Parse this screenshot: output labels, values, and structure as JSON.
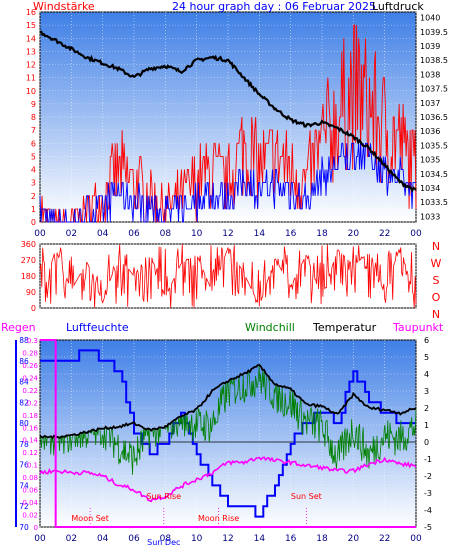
{
  "header": {
    "left_label": "Windstärke",
    "title": "24 hour graph day : 06 Februar 2025",
    "right_label": "Luftdruck"
  },
  "colors": {
    "wind": "#ff0000",
    "gust_blue": "#0000ff",
    "pressure": "#000000",
    "humidity": "#0000ff",
    "windchill": "#008000",
    "temperature": "#000000",
    "dewpoint": "#ff00ff",
    "rain": "#ff00ff",
    "axis_pink": "#ff00ff",
    "axis_blue": "#0000ff"
  },
  "x_ticks": [
    "00",
    "02",
    "04",
    "06",
    "08",
    "10",
    "12",
    "14",
    "16",
    "18",
    "20",
    "22",
    "00"
  ],
  "panel1": {
    "left_ticks": [
      "0",
      "1",
      "2",
      "3",
      "4",
      "5",
      "6",
      "7",
      "8",
      "9",
      "10",
      "11",
      "12",
      "13",
      "14",
      "15",
      "16"
    ],
    "right_ticks": [
      "1033",
      "1033.5",
      "1034",
      "1034.5",
      "1035",
      "1035.5",
      "1036",
      "1036.5",
      "1037",
      "1037.5",
      "1038",
      "1038.5",
      "1039",
      "1039.5",
      "1040"
    ]
  },
  "panel2": {
    "left_ticks": [
      "0",
      "90",
      "180",
      "270",
      "360"
    ],
    "right_letters": [
      "N",
      "W",
      "S",
      "O",
      "N"
    ]
  },
  "panel3": {
    "legend": {
      "rain": "Regen",
      "humidity": "Luftfeuchte",
      "windchill": "Windchill",
      "temperature": "Temperatur",
      "dewpoint": "Taupunkt"
    },
    "rain_ticks": [
      "0",
      "0.02",
      "0.04",
      "0.06",
      "0.08",
      "0.1",
      "0.12",
      "0.14",
      "0.16",
      "0.18",
      "0.2",
      "0.22",
      "0.24",
      "0.26",
      "0.28",
      "0.3"
    ],
    "humidity_ticks": [
      "70",
      "72",
      "74",
      "76",
      "78",
      "80",
      "82",
      "84",
      "86",
      "88"
    ],
    "temp_ticks": [
      "-5",
      "-4",
      "-3",
      "-2",
      "-1",
      "0",
      "1",
      "2",
      "3",
      "4",
      "5",
      "6"
    ],
    "events": [
      {
        "label": "Moon Set",
        "hour": 3.2
      },
      {
        "label": "Sun Rise",
        "hour": 7.9
      },
      {
        "label": "Sun Dec",
        "hour": 7.9
      },
      {
        "label": "Moon Rise",
        "hour": 11.4
      },
      {
        "label": "Sun Set",
        "hour": 17.0
      }
    ]
  },
  "chart_data": [
    {
      "type": "line",
      "panel": "wind_and_pressure",
      "x": [
        0,
        1,
        2,
        3,
        4,
        5,
        6,
        7,
        8,
        9,
        10,
        11,
        12,
        13,
        14,
        15,
        16,
        17,
        18,
        19,
        20,
        21,
        22,
        23,
        24
      ],
      "series": [
        {
          "name": "Luftdruck",
          "axis": "right",
          "values": [
            1039.5,
            1039.2,
            1038.9,
            1038.6,
            1038.4,
            1038.2,
            1037.9,
            1038.2,
            1038.3,
            1038.1,
            1038.5,
            1038.6,
            1038.5,
            1037.9,
            1037.3,
            1036.8,
            1036.4,
            1036.2,
            1036.3,
            1036.1,
            1035.8,
            1035.4,
            1034.8,
            1034.2,
            1033.9
          ]
        },
        {
          "name": "Windstärke",
          "axis": "left",
          "values": [
            1,
            0,
            0,
            1,
            2,
            4,
            3,
            2,
            1,
            2,
            3,
            4,
            3,
            6,
            4,
            5,
            4,
            3,
            6,
            8,
            10,
            9,
            7,
            6,
            4
          ]
        }
      ],
      "ylim_left": [
        0,
        16
      ],
      "ylim_right": [
        1032.8,
        1040.2
      ]
    },
    {
      "type": "scatter",
      "panel": "wind_direction",
      "x": [
        0,
        1,
        2,
        3,
        4,
        5,
        6,
        7,
        8,
        9,
        10,
        11,
        12,
        13,
        14,
        15,
        16,
        17,
        18,
        19,
        20,
        21,
        22,
        23,
        24
      ],
      "values": [
        40,
        330,
        100,
        260,
        30,
        290,
        180,
        320,
        60,
        250,
        300,
        90,
        340,
        200,
        10,
        280,
        120,
        300,
        50,
        330,
        240,
        310,
        80,
        350,
        20
      ],
      "ylim": [
        0,
        360
      ]
    },
    {
      "type": "line",
      "panel": "temperature_humidity",
      "x": [
        0,
        1,
        2,
        3,
        4,
        5,
        6,
        7,
        8,
        9,
        10,
        11,
        12,
        13,
        14,
        15,
        16,
        17,
        18,
        19,
        20,
        21,
        22,
        23,
        24
      ],
      "series": [
        {
          "name": "Temperatur",
          "axis": "temp",
          "values": [
            0.3,
            0.3,
            0.4,
            0.6,
            0.8,
            0.9,
            1.1,
            0.7,
            0.9,
            1.5,
            1.9,
            3.0,
            3.6,
            4.0,
            4.5,
            3.4,
            3.1,
            2.2,
            2.1,
            1.6,
            2.8,
            2.0,
            1.9,
            1.7,
            2.0
          ]
        },
        {
          "name": "Windchill",
          "axis": "temp",
          "values": [
            0.3,
            0.3,
            0.4,
            0.6,
            0.8,
            -0.2,
            -1.0,
            0.7,
            0.9,
            1.5,
            1.0,
            1.0,
            3.0,
            3.4,
            3.8,
            2.8,
            2.3,
            1.2,
            0.9,
            -1.0,
            0.8,
            -0.8,
            0.4,
            0.2,
            1.0
          ]
        },
        {
          "name": "Taupunkt",
          "axis": "temp",
          "values": [
            -1.8,
            -1.7,
            -1.8,
            -1.8,
            -2.0,
            -2.5,
            -2.8,
            -3.4,
            -3.2,
            -2.6,
            -2.2,
            -1.8,
            -1.2,
            -1.2,
            -0.9,
            -1.1,
            -1.2,
            -1.4,
            -1.5,
            -1.7,
            -1.7,
            -1.3,
            -1.0,
            -1.3,
            -1.4
          ]
        },
        {
          "name": "Luftfeuchte",
          "axis": "humidity",
          "values": [
            86,
            86,
            86,
            87,
            86,
            85,
            79,
            77,
            78,
            81,
            77,
            74,
            72,
            72,
            71,
            74,
            78,
            80,
            81,
            80,
            85,
            82,
            81,
            80,
            80
          ]
        },
        {
          "name": "Regen",
          "axis": "rain",
          "values": [
            0.3,
            0,
            0,
            0,
            0,
            0,
            0,
            0,
            0,
            0,
            0,
            0,
            0,
            0,
            0,
            0,
            0,
            0,
            0,
            0,
            0,
            0,
            0,
            0,
            0
          ]
        }
      ],
      "ylim_temp": [
        -5,
        6
      ],
      "ylim_humidity": [
        70,
        88
      ],
      "ylim_rain": [
        0,
        0.3
      ]
    }
  ]
}
